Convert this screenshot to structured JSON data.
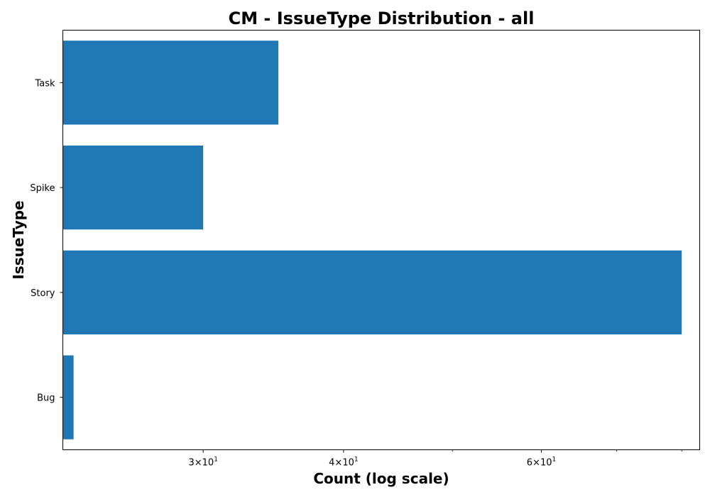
{
  "chart_data": {
    "type": "bar",
    "orientation": "horizontal",
    "title": "CM - IssueType Distribution - all",
    "xlabel": "Count (log scale)",
    "ylabel": "IssueType",
    "x_scale": "log",
    "xlim": [
      22.5,
      83
    ],
    "categories": [
      "Bug",
      "Story",
      "Spike",
      "Task"
    ],
    "series": [
      {
        "values": [
          23,
          80,
          30,
          35
        ],
        "color": "#1f77b4"
      }
    ],
    "x_major_ticks": [
      {
        "value": 30,
        "mantissa": "3",
        "base": "10",
        "exponent": "1"
      },
      {
        "value": 40,
        "mantissa": "4",
        "base": "10",
        "exponent": "1"
      },
      {
        "value": 60,
        "mantissa": "6",
        "base": "10",
        "exponent": "1"
      }
    ],
    "x_minor_ticks": [
      50,
      70,
      80
    ],
    "grid": false,
    "legend": "none"
  }
}
